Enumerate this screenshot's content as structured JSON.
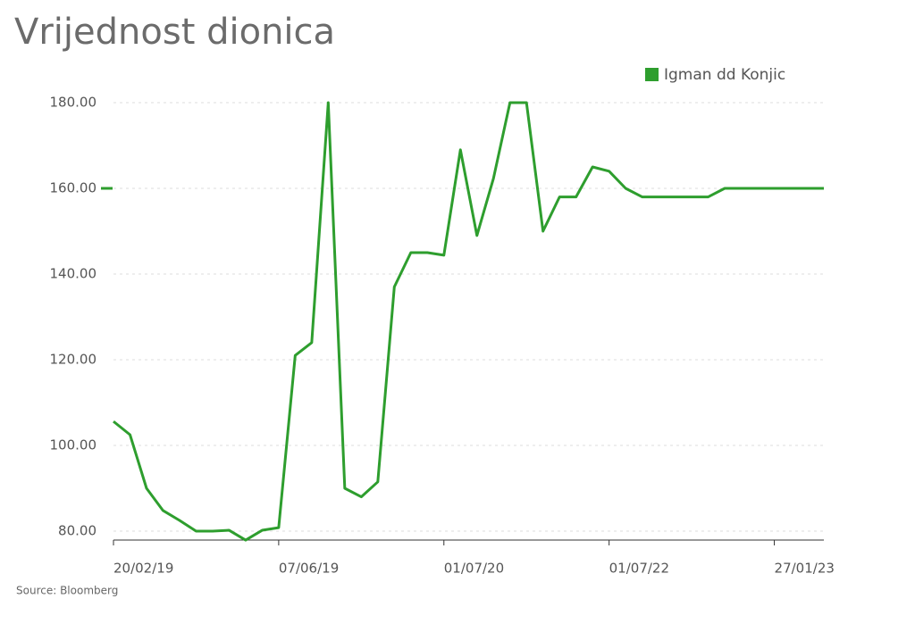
{
  "chart_data": {
    "type": "line",
    "title": "Vrijednost dionica",
    "source": "Source: Bloomberg",
    "categories": [
      "20/02/19",
      null,
      null,
      null,
      null,
      null,
      null,
      null,
      null,
      null,
      "07/06/19",
      null,
      null,
      null,
      null,
      null,
      null,
      null,
      null,
      null,
      "01/07/20",
      null,
      null,
      null,
      null,
      null,
      null,
      null,
      null,
      null,
      "01/07/22",
      null,
      null,
      null,
      null,
      null,
      null,
      null,
      null,
      null,
      "27/01/23",
      null,
      null,
      null
    ],
    "series": [
      {
        "name": "Igman dd Konjic",
        "color": "#2e9e2e",
        "values": [
          105.6,
          102.5,
          90,
          84.8,
          82.5,
          80,
          80,
          80.2,
          77.9,
          80.2,
          80.8,
          121,
          124,
          180,
          90,
          88,
          91.5,
          137,
          145,
          145,
          144.4,
          169,
          149,
          162.3,
          180,
          180,
          150,
          158,
          158,
          165,
          164,
          160,
          158,
          158,
          158,
          158,
          158,
          160,
          160,
          160,
          160,
          160,
          160,
          160
        ]
      }
    ],
    "ylim": [
      77.5,
      182
    ],
    "yticks": [
      {
        "value": 80,
        "label": "80.00"
      },
      {
        "value": 100,
        "label": "100.00"
      },
      {
        "value": 120,
        "label": "120.00"
      },
      {
        "value": 140,
        "label": "140.00"
      },
      {
        "value": 160,
        "label": "160.00"
      },
      {
        "value": 180,
        "label": "180.00"
      }
    ],
    "grid": true
  }
}
